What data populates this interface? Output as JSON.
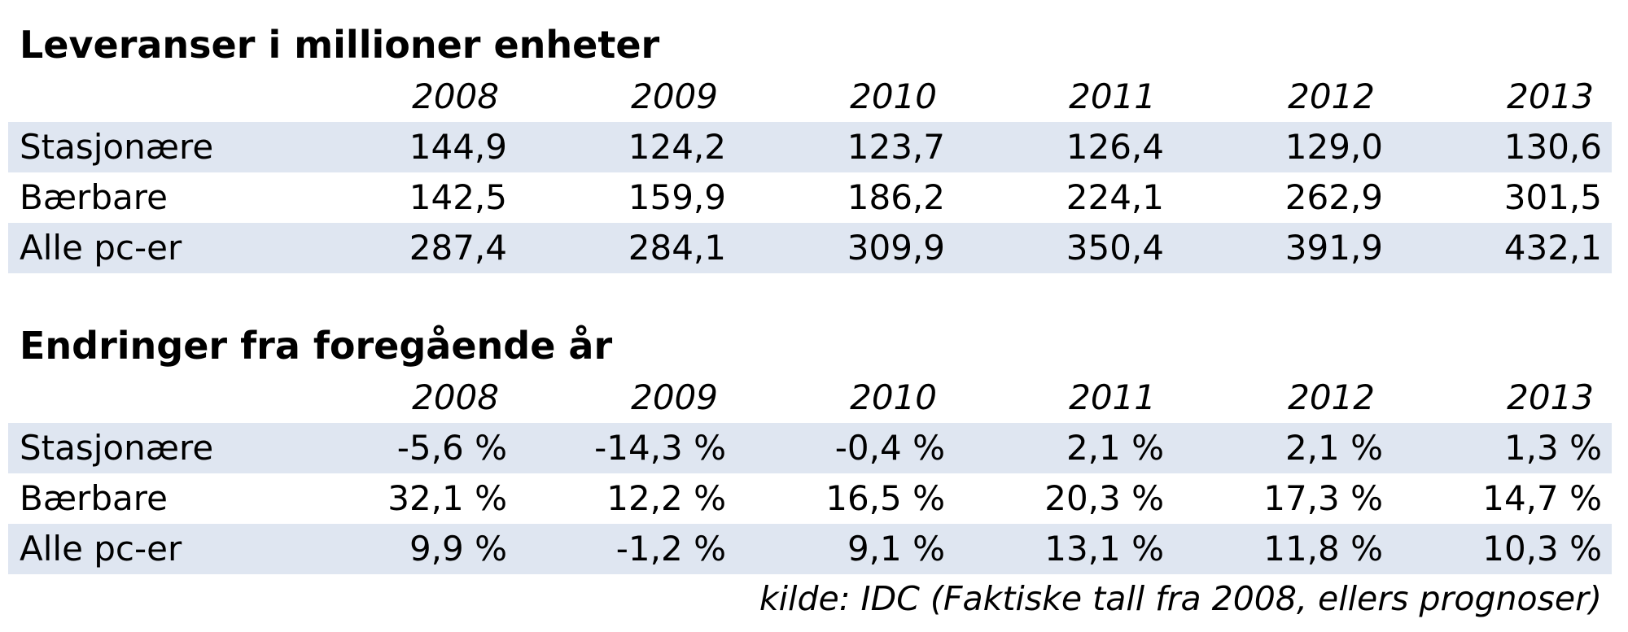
{
  "chart_data": [
    {
      "type": "table",
      "title": "Leveranser i millioner enheter",
      "columns": [
        "2008",
        "2009",
        "2010",
        "2011",
        "2012",
        "2013"
      ],
      "rows": [
        {
          "label": "Stasjonære",
          "values": [
            "144,9",
            "124,2",
            "123,7",
            "126,4",
            "129,0",
            "130,6"
          ]
        },
        {
          "label": "Bærbare",
          "values": [
            "142,5",
            "159,9",
            "186,2",
            "224,1",
            "262,9",
            "301,5"
          ]
        },
        {
          "label": "Alle pc-er",
          "values": [
            "287,4",
            "284,1",
            "309,9",
            "350,4",
            "391,9",
            "432,1"
          ]
        }
      ]
    },
    {
      "type": "table",
      "title": "Endringer fra foregående år",
      "columns": [
        "2008",
        "2009",
        "2010",
        "2011",
        "2012",
        "2013"
      ],
      "rows": [
        {
          "label": "Stasjonære",
          "values": [
            "-5,6 %",
            "-14,3 %",
            "-0,4 %",
            "2,1 %",
            "2,1 %",
            "1,3 %"
          ]
        },
        {
          "label": "Bærbare",
          "values": [
            "32,1 %",
            "12,2 %",
            "16,5 %",
            "20,3 %",
            "17,3 %",
            "14,7 %"
          ]
        },
        {
          "label": "Alle pc-er",
          "values": [
            "9,9 %",
            "-1,2 %",
            "9,1 %",
            "13,1 %",
            "11,8 %",
            "10,3 %"
          ]
        }
      ]
    }
  ],
  "source_note": "kilde: IDC (Faktiske tall fra 2008, ellers prognoser)",
  "colors": {
    "row_shade": "#dfe6f1",
    "text": "#000000",
    "background": "#ffffff"
  }
}
